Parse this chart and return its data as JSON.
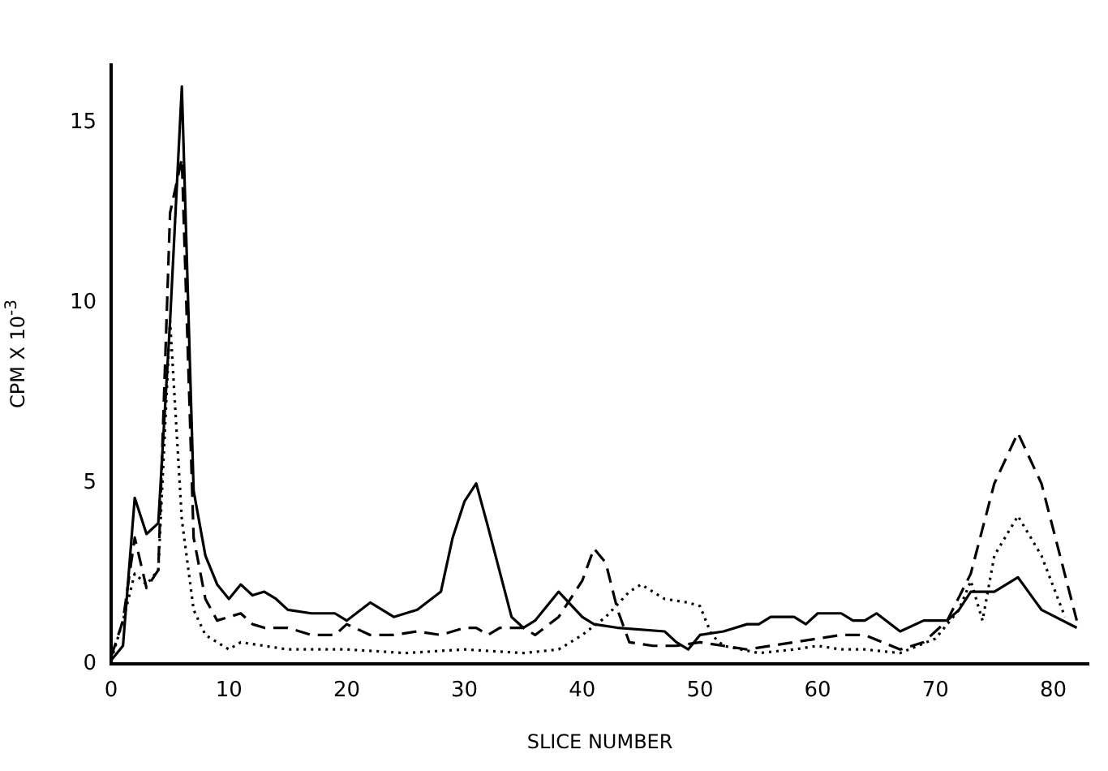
{
  "chart_data": {
    "type": "line",
    "xlabel": "SLICE NUMBER",
    "ylabel": "CPM X 10$^{-3}$",
    "xlim": [
      0,
      83
    ],
    "xticks": [
      0,
      10,
      20,
      30,
      40,
      50,
      60,
      70,
      80
    ],
    "ylim": [
      0,
      16.6
    ],
    "yticks": [
      0,
      5,
      10,
      15
    ],
    "grid": false,
    "legend": false,
    "marker": "none",
    "series": [
      {
        "color": "#000000",
        "line_style": "solid",
        "x": [
          0,
          1,
          2,
          3,
          4,
          5,
          6,
          7,
          8,
          9,
          10,
          11,
          12,
          13,
          14,
          15,
          17,
          19,
          20,
          22,
          24,
          26,
          28,
          29,
          30,
          31,
          32,
          34,
          35,
          36,
          38,
          40,
          41,
          43,
          47,
          48,
          49,
          50,
          52,
          54,
          55,
          56,
          58,
          59,
          60,
          62,
          63,
          64,
          65,
          67,
          69,
          71,
          72,
          73,
          75,
          77,
          79,
          82
        ],
        "values": [
          0.1,
          0.5,
          4.6,
          3.6,
          3.9,
          9.5,
          16,
          4.8,
          3,
          2.2,
          1.8,
          2.2,
          1.9,
          2,
          1.8,
          1.5,
          1.4,
          1.4,
          1.2,
          1.7,
          1.3,
          1.5,
          2,
          3.5,
          4.5,
          5,
          3.8,
          1.3,
          1,
          1.2,
          2,
          1.3,
          1.1,
          1,
          0.9,
          0.6,
          0.4,
          0.8,
          0.9,
          1.1,
          1.1,
          1.3,
          1.3,
          1.1,
          1.4,
          1.4,
          1.2,
          1.2,
          1.4,
          0.9,
          1.2,
          1.2,
          1.5,
          2,
          2,
          2.4,
          1.5,
          1
        ]
      },
      {
        "color": "#000000",
        "line_style": "dashed",
        "x": [
          0,
          1,
          2,
          3,
          4,
          5,
          6,
          7,
          8,
          9,
          10,
          11,
          12,
          13,
          15,
          17,
          19,
          20,
          22,
          24,
          26,
          28,
          30,
          31,
          32,
          33,
          35,
          36,
          38,
          40,
          41,
          42,
          43,
          44,
          46,
          48,
          50,
          52,
          54,
          56,
          58,
          60,
          62,
          64,
          67,
          69,
          71,
          73,
          75,
          77,
          79,
          82
        ],
        "values": [
          0.2,
          1.2,
          3.5,
          2.1,
          2.6,
          12.5,
          14,
          3.5,
          1.8,
          1.2,
          1.3,
          1.4,
          1.1,
          1,
          1,
          0.8,
          0.8,
          1.1,
          0.8,
          0.8,
          0.9,
          0.8,
          1,
          1,
          0.8,
          1,
          1,
          0.8,
          1.3,
          2.3,
          3.2,
          2.8,
          1.5,
          0.6,
          0.5,
          0.5,
          0.6,
          0.5,
          0.4,
          0.5,
          0.6,
          0.7,
          0.8,
          0.8,
          0.4,
          0.6,
          1.2,
          2.5,
          5,
          6.4,
          5,
          1.2
        ]
      },
      {
        "color": "#000000",
        "line_style": "dotted",
        "x": [
          0,
          1,
          2,
          3,
          4,
          5,
          6,
          7,
          8,
          9,
          10,
          11,
          13,
          15,
          20,
          25,
          30,
          35,
          38,
          40,
          42,
          44,
          45,
          47,
          49,
          50,
          51,
          52,
          55,
          58,
          60,
          62,
          64,
          67,
          70,
          72,
          73,
          74,
          75,
          77,
          79,
          81
        ],
        "values": [
          0.1,
          1.2,
          2.5,
          2.2,
          2.6,
          9.5,
          4,
          1.5,
          0.8,
          0.6,
          0.4,
          0.6,
          0.5,
          0.4,
          0.4,
          0.3,
          0.4,
          0.3,
          0.4,
          0.8,
          1.3,
          2,
          2.2,
          1.8,
          1.7,
          1.6,
          0.8,
          0.5,
          0.3,
          0.4,
          0.5,
          0.4,
          0.4,
          0.3,
          0.7,
          1.5,
          2.3,
          1.2,
          3,
          4.1,
          3,
          1.3
        ]
      }
    ]
  }
}
